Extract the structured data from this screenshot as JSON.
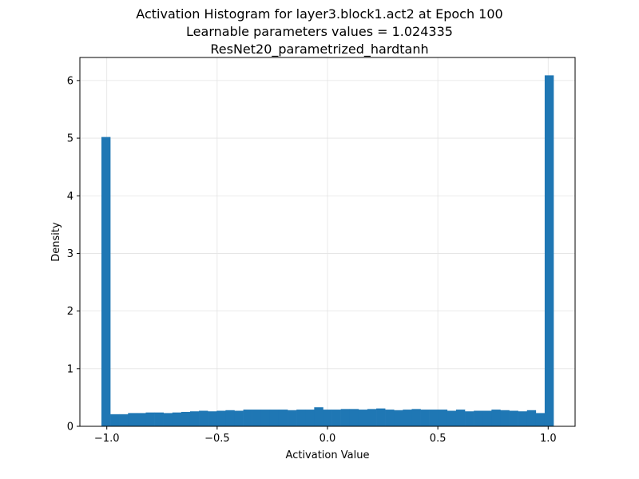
{
  "chart_data": {
    "type": "bar",
    "title_lines": [
      "Activation Histogram for layer3.block1.act2 at Epoch 100",
      "Learnable parameters values = 1.024335",
      "ResNet20_parametrized_hardtanh"
    ],
    "xlabel": "Activation Value",
    "ylabel": "Density",
    "xlim": [
      -1.122,
      1.122
    ],
    "ylim": [
      0,
      6.4
    ],
    "xticks": [
      -1.0,
      -0.5,
      0.0,
      0.5,
      1.0
    ],
    "xtick_labels": [
      "−1.0",
      "−0.5",
      "0.0",
      "0.5",
      "1.0"
    ],
    "yticks": [
      0,
      1,
      2,
      3,
      4,
      5,
      6
    ],
    "ytick_labels": [
      "0",
      "1",
      "2",
      "3",
      "4",
      "5",
      "6"
    ],
    "grid": true,
    "bar_color": "#1f77b4",
    "bin_range": [
      -1.024335,
      1.024335
    ],
    "values": [
      5.02,
      0.21,
      0.21,
      0.23,
      0.23,
      0.24,
      0.24,
      0.23,
      0.24,
      0.25,
      0.26,
      0.27,
      0.26,
      0.27,
      0.28,
      0.27,
      0.29,
      0.29,
      0.29,
      0.29,
      0.29,
      0.28,
      0.29,
      0.29,
      0.33,
      0.29,
      0.29,
      0.3,
      0.3,
      0.29,
      0.3,
      0.31,
      0.29,
      0.28,
      0.29,
      0.3,
      0.29,
      0.29,
      0.29,
      0.27,
      0.29,
      0.26,
      0.27,
      0.27,
      0.29,
      0.28,
      0.27,
      0.26,
      0.28,
      0.23,
      6.09
    ]
  }
}
